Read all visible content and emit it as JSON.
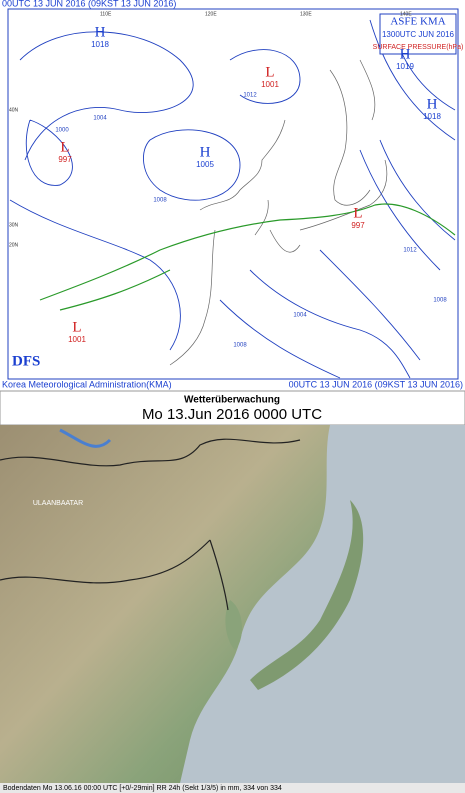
{
  "weather_chart": {
    "header_left": "00UTC 13 JUN 2016 (09KST 13 JUN 2016)",
    "legend": {
      "title": "ASFE   KMA",
      "time": "1300UTC JUN 2016",
      "field": "SURFACE PRESSURE(hPa)"
    },
    "logo": "DFS",
    "footer_left": "Korea Meteorological Administration(KMA)",
    "footer_right": "00UTC 13 JUN 2016 (09KST 13 JUN 2016)",
    "pressure_centers": [
      {
        "type": "H",
        "value": "1018"
      },
      {
        "type": "L",
        "value": "1001"
      },
      {
        "type": "H",
        "value": "1019"
      },
      {
        "type": "H",
        "value": "1018"
      },
      {
        "type": "L",
        "value": "997"
      },
      {
        "type": "H",
        "value": "1005"
      },
      {
        "type": "L",
        "value": "997"
      },
      {
        "type": "L",
        "value": "1001"
      }
    ],
    "isobar_labels": [
      "1000",
      "1004",
      "1008",
      "1012",
      "1004",
      "1008",
      "1012",
      "1008"
    ],
    "grid_labels": {
      "lat": [
        "40N",
        "30N",
        "20N"
      ],
      "lon": [
        "110E",
        "120E",
        "130E",
        "140E"
      ]
    }
  },
  "radar_panel": {
    "title": "Wetterüberwachung",
    "subtitle": "Mo 13.Jun 2016 0000 UTC",
    "places": [
      "ULAANBAATAR"
    ],
    "footer": "Bodendaten   Mo 13.06.16 00:00 UTC [+0/-29min]   RR 24h (Sekt 1/3/5) in mm, 334 von 334"
  }
}
